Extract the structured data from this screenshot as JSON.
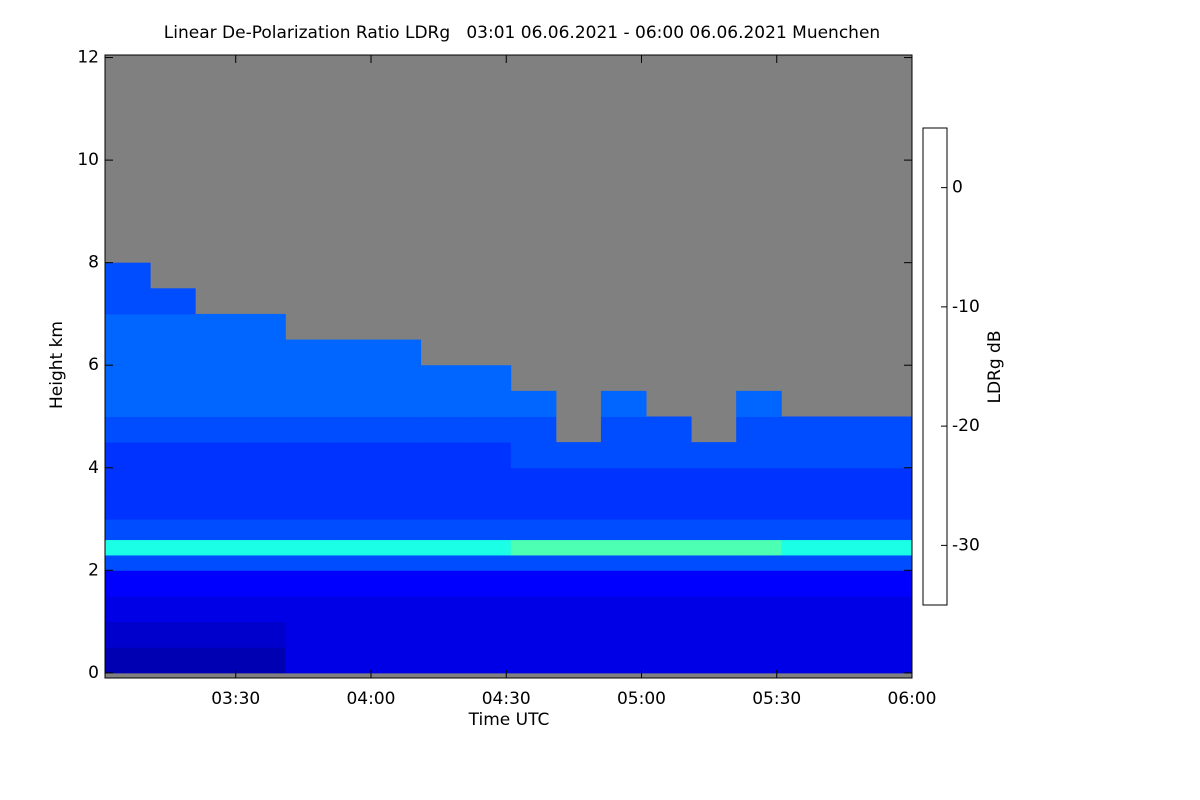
{
  "chart_data": {
    "type": "heatmap",
    "title": "Linear De-Polarization Ratio LDRg   03:01 06.06.2021 - 06:00 06.06.2021 Muenchen",
    "x_label": "Time UTC",
    "y_label": "Height km",
    "colorbar_label": "LDRg dB",
    "xlim": [
      181,
      360
    ],
    "ylim": [
      -0.1,
      12.05
    ],
    "zlim": [
      -35,
      5
    ],
    "xticks": [
      {
        "value": 210,
        "label": "03:30"
      },
      {
        "value": 240,
        "label": "04:00"
      },
      {
        "value": 270,
        "label": "04:30"
      },
      {
        "value": 300,
        "label": "05:00"
      },
      {
        "value": 330,
        "label": "05:30"
      },
      {
        "value": 360,
        "label": "06:00"
      }
    ],
    "yticks": [
      0,
      2,
      4,
      6,
      8,
      10,
      12
    ],
    "zticks": [
      0,
      -10,
      -20,
      -30
    ],
    "colormap": "jet",
    "background": "#808080",
    "x_edges": [
      181,
      191,
      201,
      211,
      221,
      231,
      241,
      251,
      261,
      271,
      281,
      291,
      301,
      311,
      321,
      331,
      341,
      351,
      360
    ],
    "y_edges": [
      0,
      0.5,
      1,
      1.5,
      2,
      2.3,
      2.6,
      3,
      3.5,
      4,
      4.5,
      5,
      5.5,
      6,
      6.5,
      7,
      7.5,
      8
    ],
    "z": [
      [
        -33,
        -33,
        -33,
        -33,
        -31,
        -31,
        -31,
        -31,
        -31,
        -31,
        -31,
        -31,
        -31,
        -31,
        -31,
        -31,
        -31,
        -31
      ],
      [
        -32,
        -32,
        -32,
        -32,
        -31,
        -31,
        -31,
        -31,
        -31,
        -31,
        -31,
        -31,
        -31,
        -31,
        -31,
        -31,
        -31,
        -31
      ],
      [
        -31,
        -31,
        -31,
        -31,
        -31,
        -31,
        -31,
        -31,
        -31,
        -31,
        -31,
        -31,
        -31,
        -31,
        -31,
        -31,
        -31,
        -31
      ],
      [
        -30,
        -30,
        -30,
        -30,
        -30,
        -30,
        -30,
        -30,
        -30,
        -30,
        -30,
        -30,
        -30,
        -30,
        -30,
        -30,
        -30,
        -30
      ],
      [
        -27,
        -27,
        -27,
        -27,
        -27,
        -27,
        -27,
        -27,
        -27,
        -27,
        -27,
        -27,
        -27,
        -27,
        -27,
        -27,
        -27,
        -27
      ],
      [
        -19,
        -19,
        -19,
        -19,
        -19,
        -19,
        -19,
        -19,
        -19,
        -17,
        -17,
        -17,
        -17,
        -17,
        -17,
        -19,
        -19,
        -19
      ],
      [
        -27,
        -27,
        -27,
        -27,
        -27,
        -27,
        -27,
        -27,
        -27,
        -27,
        -27,
        -27,
        -27,
        -27,
        -27,
        -27,
        -27,
        -27
      ],
      [
        -28,
        -28,
        -28,
        -28,
        -28,
        -28,
        -28,
        -28,
        -28,
        -28,
        -28,
        -28,
        -28,
        -28,
        -28,
        -28,
        -28,
        -28
      ],
      [
        -28,
        -28,
        -28,
        -28,
        -28,
        -28,
        -28,
        -28,
        -28,
        -28,
        -28,
        -28,
        -28,
        -28,
        -28,
        -28,
        -28,
        -28
      ],
      [
        -28,
        -28,
        -28,
        -28,
        -28,
        -28,
        -28,
        -28,
        -28,
        -27,
        -27,
        -27,
        -27,
        -27,
        -27,
        -27,
        -27,
        -27
      ],
      [
        -27,
        -27,
        -27,
        -27,
        -27,
        -27,
        -27,
        -27,
        -27,
        -27,
        null,
        -27,
        -27,
        null,
        -27,
        -27,
        -27,
        -27
      ],
      [
        -26,
        -26,
        -26,
        -26,
        -26,
        -26,
        -26,
        -26,
        -26,
        -26,
        null,
        -26,
        null,
        null,
        -26,
        null,
        null,
        null
      ],
      [
        -26,
        -26,
        -26,
        -26,
        -26,
        -26,
        -26,
        -26,
        -26,
        null,
        null,
        null,
        null,
        null,
        null,
        null,
        null,
        null
      ],
      [
        -26,
        -26,
        -26,
        -26,
        -26,
        -26,
        -26,
        null,
        null,
        null,
        null,
        null,
        null,
        null,
        null,
        null,
        null,
        null
      ],
      [
        -26,
        -26,
        -26,
        -26,
        null,
        null,
        null,
        null,
        null,
        null,
        null,
        null,
        null,
        null,
        null,
        null,
        null,
        null
      ],
      [
        -27,
        -27,
        null,
        null,
        null,
        null,
        null,
        null,
        null,
        null,
        null,
        null,
        null,
        null,
        null,
        null,
        null,
        null
      ],
      [
        -27,
        null,
        null,
        null,
        null,
        null,
        null,
        null,
        null,
        null,
        null,
        null,
        null,
        null,
        null,
        null,
        null,
        null
      ]
    ]
  }
}
